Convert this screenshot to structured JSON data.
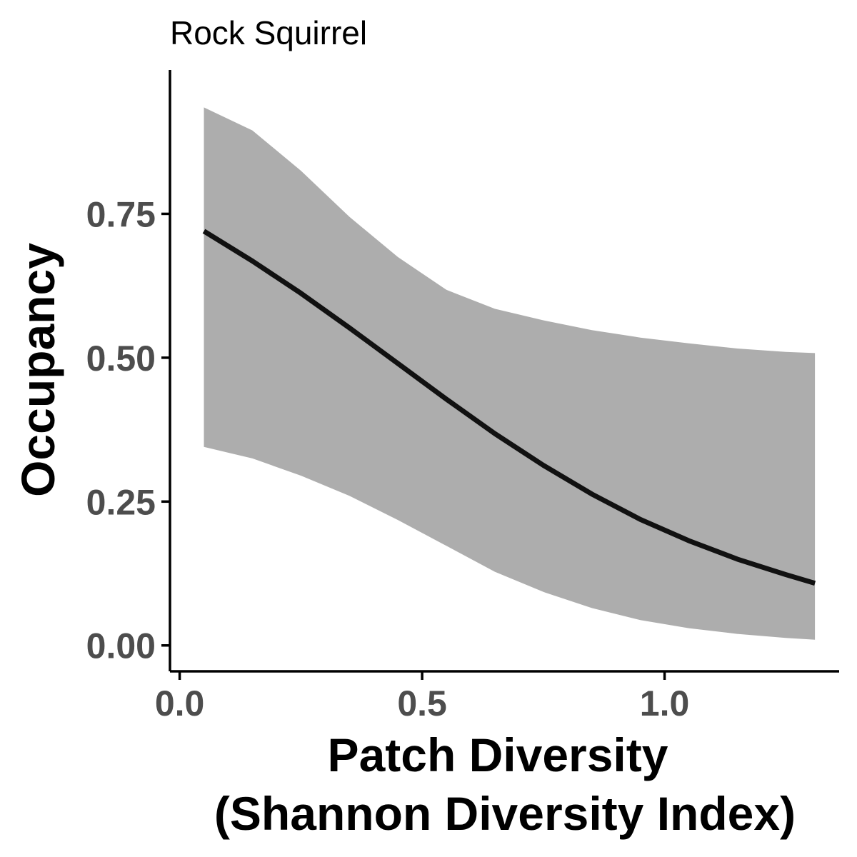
{
  "chart_data": {
    "type": "line",
    "title": "Rock Squirrel",
    "xlabel_lines": [
      "Patch Diversity",
      "(Shannon Diversity Index)"
    ],
    "ylabel": "Occupancy",
    "xlim": [
      -0.02,
      1.36
    ],
    "ylim": [
      -0.045,
      1.0
    ],
    "x_ticks": [
      0.0,
      0.5,
      1.0
    ],
    "x_tick_labels": [
      "0.0",
      "0.5",
      "1.0"
    ],
    "y_ticks": [
      0.0,
      0.25,
      0.5,
      0.75
    ],
    "y_tick_labels": [
      "0.00",
      "0.25",
      "0.50",
      "0.75"
    ],
    "grid": false,
    "colors": {
      "line": "#111111",
      "ribbon": "#adadad",
      "axis": "#000000"
    },
    "series": [
      {
        "x": [
          0.05,
          0.15,
          0.25,
          0.35,
          0.45,
          0.55,
          0.65,
          0.75,
          0.85,
          0.95,
          1.05,
          1.15,
          1.25,
          1.31
        ],
        "y": [
          0.72,
          0.668,
          0.612,
          0.552,
          0.49,
          0.428,
          0.368,
          0.313,
          0.263,
          0.219,
          0.182,
          0.15,
          0.123,
          0.108
        ],
        "lower": [
          0.345,
          0.325,
          0.295,
          0.26,
          0.218,
          0.173,
          0.128,
          0.093,
          0.065,
          0.044,
          0.03,
          0.02,
          0.013,
          0.01
        ],
        "upper": [
          0.935,
          0.895,
          0.825,
          0.745,
          0.675,
          0.618,
          0.585,
          0.565,
          0.548,
          0.535,
          0.525,
          0.516,
          0.51,
          0.508
        ]
      }
    ]
  }
}
